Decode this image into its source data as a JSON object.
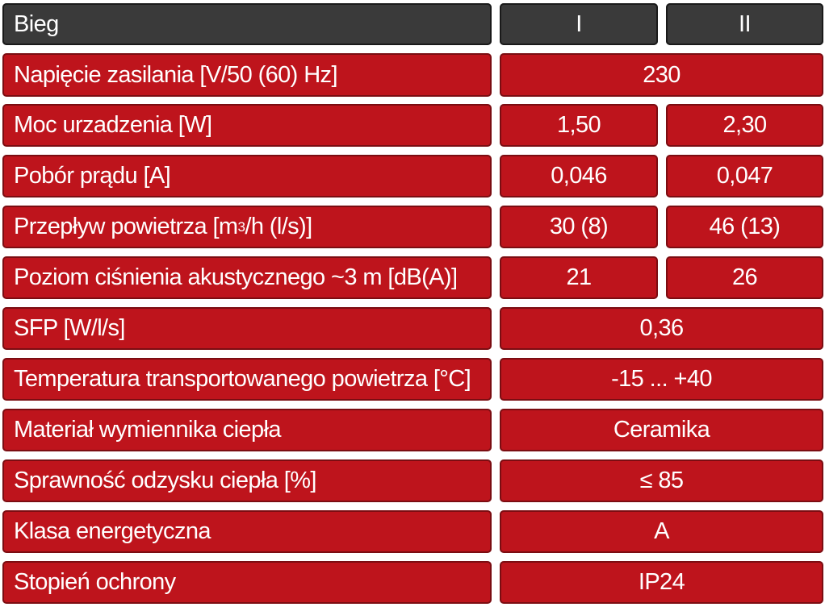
{
  "header": {
    "label": "Bieg",
    "col1": "I",
    "col2": "II"
  },
  "rows": [
    {
      "label": "Napięcie zasilania [V/50 (60) Hz]",
      "value": "230"
    },
    {
      "label": "Moc urzadzenia [W]",
      "v1": "1,50",
      "v2": "2,30"
    },
    {
      "label": "Pobór prądu [A]",
      "v1": "0,046",
      "v2": "0,047"
    },
    {
      "label_pre": "Przepływ powietrza [m",
      "label_sup": "3",
      "label_post": "/h (l/s)]",
      "v1": "30 (8)",
      "v2": "46 (13)"
    },
    {
      "label": "Poziom ciśnienia akustycznego ~3 m [dB(A)]",
      "v1": "21",
      "v2": "26"
    },
    {
      "label": "SFP [W/l/s]",
      "value": "0,36"
    },
    {
      "label": "Temperatura transportowanego powietrza [°C]",
      "value": "-15 ... +40"
    },
    {
      "label": "Materiał wymiennika ciepła",
      "value": "Ceramika"
    },
    {
      "label": "Sprawność odzysku ciepła [%]",
      "value": "≤ 85"
    },
    {
      "label": "Klasa energetyczna",
      "value": "A"
    },
    {
      "label": "Stopień ochrony",
      "value": "IP24"
    }
  ],
  "colors": {
    "header_bg": "#3a3a3a",
    "row_bg": "#be141c",
    "text": "#ffffff"
  }
}
